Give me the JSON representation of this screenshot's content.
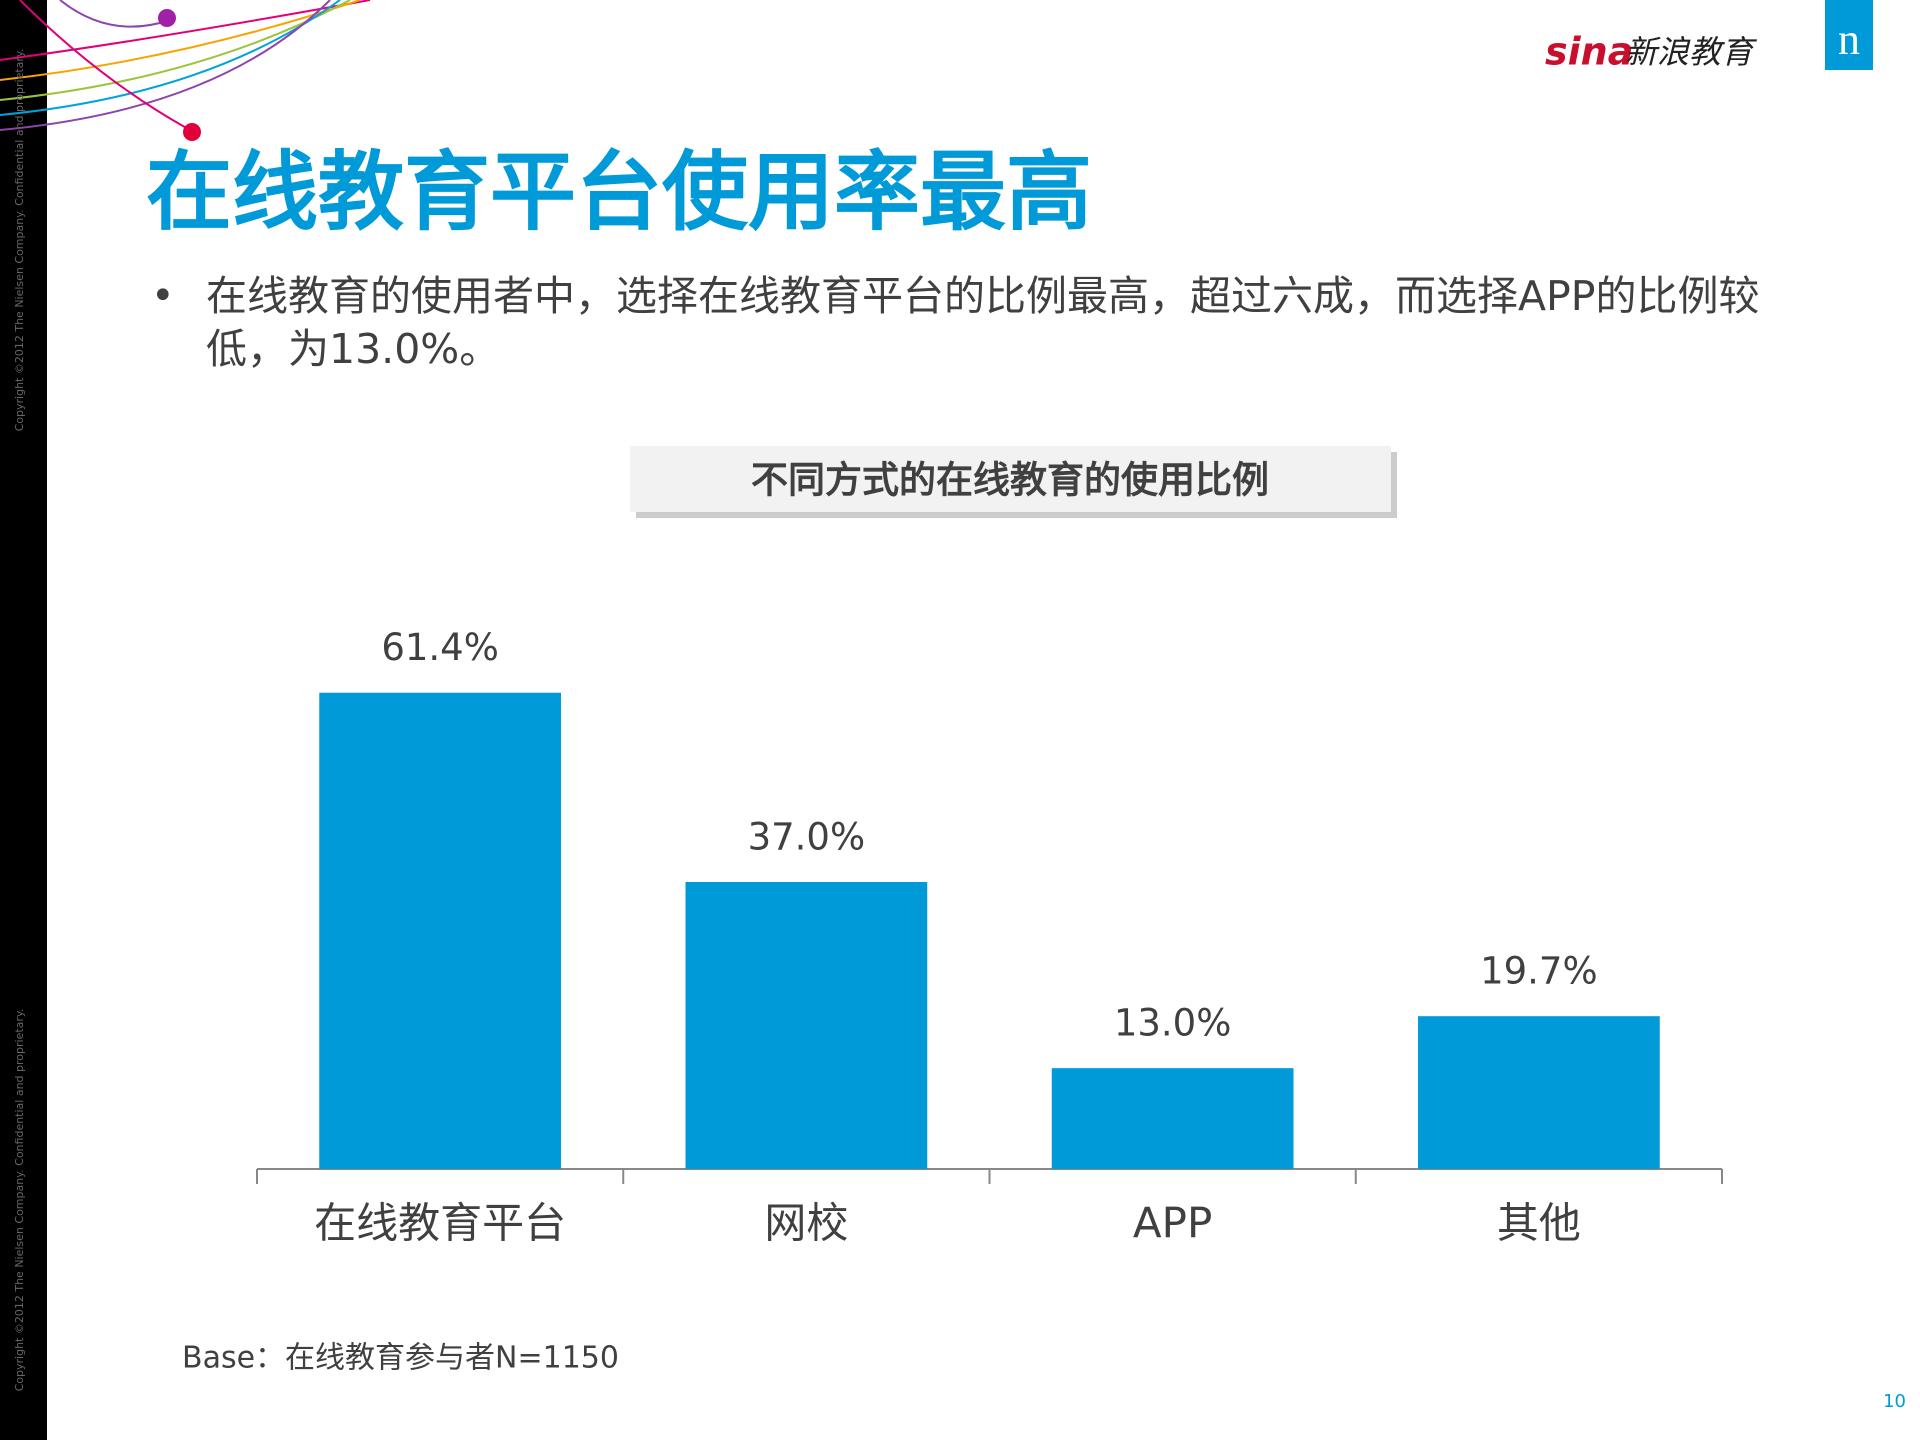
{
  "slide": {
    "title": "在线教育平台使用率最高",
    "bullet": "在线教育的使用者中，选择在线教育平台的比例最高，超过六成，而选择APP的比例较低，为13.0%。",
    "logo_text": "新浪教育",
    "logo_sina": "sina",
    "nielsen_logo": "n",
    "copyright": "Copyright ©2012 The Nielsen Company. Confidential and proprietary.",
    "base_note": "Base：在线教育参与者N=1150",
    "page_number": "10"
  },
  "chart_data": {
    "type": "bar",
    "title": "不同方式的在线教育的使用比例",
    "categories": [
      "在线教育平台",
      "网校",
      "APP",
      "其他"
    ],
    "values": [
      61.4,
      37.0,
      13.0,
      19.7
    ],
    "value_labels": [
      "61.4%",
      "37.0%",
      "13.0%",
      "19.7%"
    ],
    "color": "#009ad8"
  }
}
